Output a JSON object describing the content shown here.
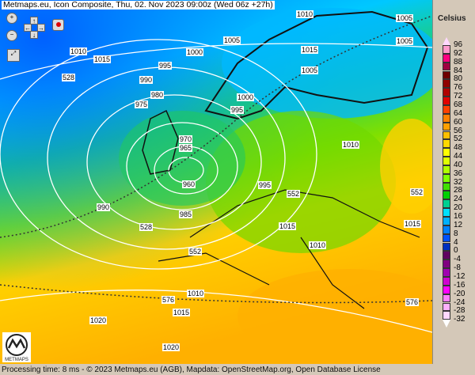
{
  "title": "Metmaps.eu, Icon Composite, Thu, 02. Nov 2023 09:00z (Wed 06z +27h)",
  "legend": {
    "unit": "Celsius",
    "values": [
      "96",
      "92",
      "88",
      "84",
      "80",
      "76",
      "72",
      "68",
      "64",
      "60",
      "56",
      "52",
      "48",
      "44",
      "40",
      "36",
      "32",
      "28",
      "24",
      "20",
      "16",
      "12",
      "8",
      "4",
      "0",
      "-4",
      "-8",
      "-12",
      "-16",
      "-20",
      "-24",
      "-28",
      "-32"
    ],
    "colors": [
      "#ff99cc",
      "#ff0080",
      "#a00040",
      "#700000",
      "#900000",
      "#b00000",
      "#e00000",
      "#ff4000",
      "#ff8000",
      "#ffa000",
      "#ffc000",
      "#ffd800",
      "#ffff00",
      "#e0ff00",
      "#b0ff00",
      "#80ff00",
      "#40e000",
      "#00d000",
      "#00d090",
      "#00e0ff",
      "#00b0ff",
      "#0080ff",
      "#0050ff",
      "#0030c0",
      "#600060",
      "#800080",
      "#a000b0",
      "#d000d0",
      "#ff00ff",
      "#ff80ff",
      "#ffb0ff",
      "#ffd8ff"
    ]
  },
  "map": {
    "labels": [
      "1005",
      "1000",
      "1010",
      "1015",
      "995",
      "990",
      "980",
      "975",
      "970",
      "965",
      "960",
      "985",
      "990",
      "1000",
      "995",
      "1005",
      "1010",
      "1015",
      "1005",
      "1010",
      "1010",
      "1015",
      "1020",
      "1015",
      "1020",
      "528",
      "528",
      "552",
      "552",
      "552",
      "576",
      "576",
      "1005",
      "995",
      "1010",
      "1015"
    ],
    "logo_text": "METMAPS"
  },
  "controls": {
    "zoom_in": "zoom-in",
    "zoom_out": "zoom-out",
    "up": "↑",
    "down": "↓",
    "left": "←",
    "right": "→"
  },
  "footer": "Processing time: 8 ms - © 2023 Metmaps.eu (AGB), Mapdata: OpenStreetMap.org, Open Database License"
}
